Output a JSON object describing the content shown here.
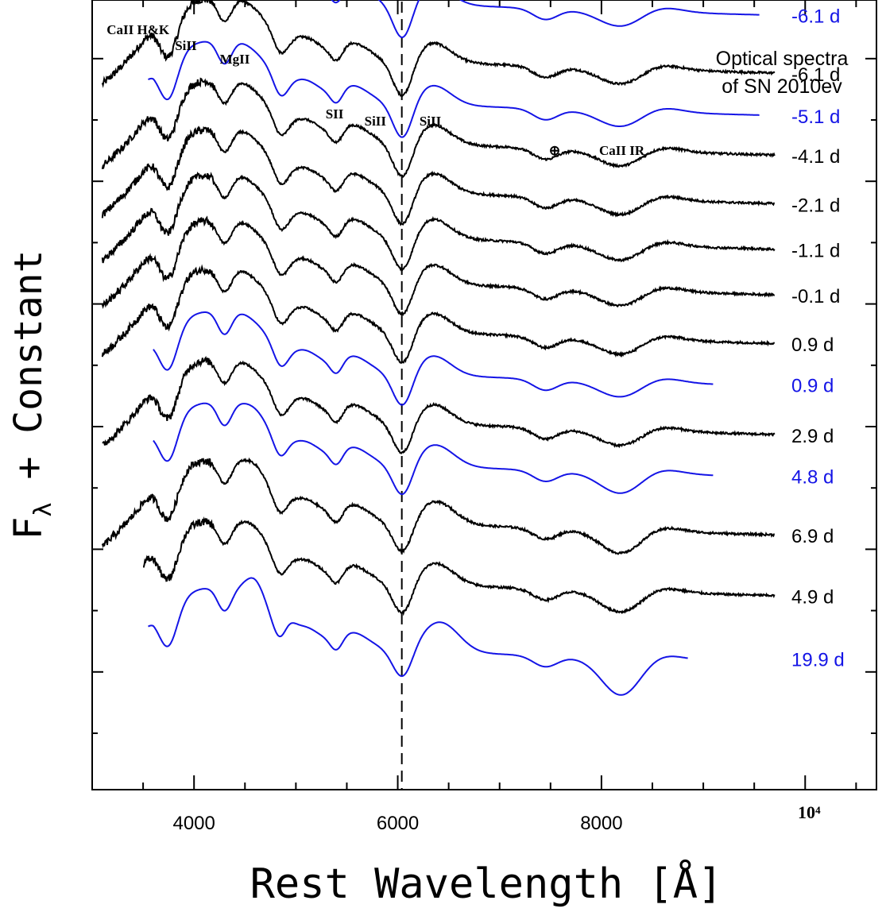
{
  "chart_data": {
    "type": "line",
    "title": [
      "Optical spectra",
      "of SN 2010ev"
    ],
    "xlabel": "Rest Wavelength [Å]",
    "ylabel": "F",
    "ylabel_subscript": "λ",
    "ylabel_suffix": " + Constant",
    "xlim": [
      3000,
      10700
    ],
    "x_ticks": [
      {
        "value": 4000,
        "label": "4000"
      },
      {
        "value": 6000,
        "label": "6000"
      },
      {
        "value": 8000,
        "label": "8000"
      },
      {
        "value": 10000,
        "label": "10⁴"
      }
    ],
    "reference_line": {
      "x": 6040,
      "style": "dashed"
    },
    "feature_labels": [
      {
        "text": "CaII H&K",
        "x": 3450
      },
      {
        "text": "SiII",
        "x": 3920
      },
      {
        "text": "MgII",
        "x": 4400
      },
      {
        "text": "SII",
        "x": 5380
      },
      {
        "text": "SiII",
        "x": 5780
      },
      {
        "text": "SiII",
        "x": 6320
      },
      {
        "text": "⊕",
        "x": 7540
      },
      {
        "text": "CaII IR",
        "x": 8200
      }
    ],
    "series_colors": {
      "black": "#000000",
      "blue": "#1414e6"
    },
    "series": [
      {
        "name": "-6.1 d",
        "color": "blue",
        "x_range": [
          3550,
          9550
        ],
        "offset": 11.5
      },
      {
        "name": "-6.1 d",
        "color": "black",
        "x_range": [
          3100,
          9700
        ],
        "offset": 10.55
      },
      {
        "name": "-5.1 d",
        "color": "blue",
        "x_range": [
          3550,
          9550
        ],
        "offset": 9.85
      },
      {
        "name": "-4.1 d",
        "color": "black",
        "x_range": [
          3100,
          9700
        ],
        "offset": 9.2
      },
      {
        "name": "-2.1 d",
        "color": "black",
        "x_range": [
          3100,
          9700
        ],
        "offset": 8.4
      },
      {
        "name": "-1.1 d",
        "color": "black",
        "x_range": [
          3100,
          9700
        ],
        "offset": 7.65
      },
      {
        "name": "-0.1 d",
        "color": "black",
        "x_range": [
          3100,
          9700
        ],
        "offset": 6.9
      },
      {
        "name": "0.9 d",
        "color": "black",
        "x_range": [
          3100,
          9700
        ],
        "offset": 6.1
      },
      {
        "name": "0.9 d",
        "color": "blue",
        "x_range": [
          3600,
          9100
        ],
        "offset": 5.4
      },
      {
        "name": "2.9 d",
        "color": "black",
        "x_range": [
          3100,
          9700
        ],
        "offset": 4.6
      },
      {
        "name": "4.8 d",
        "color": "blue",
        "x_range": [
          3600,
          9100
        ],
        "offset": 3.9
      },
      {
        "name": "6.9 d",
        "color": "black",
        "x_range": [
          3100,
          9700
        ],
        "offset": 2.95
      },
      {
        "name": "4.9 d",
        "color": "black",
        "x_range": [
          3500,
          9700
        ],
        "offset": 1.95
      },
      {
        "name": "19.9 d",
        "color": "blue",
        "x_range": [
          3550,
          8850
        ],
        "offset": 0.85
      }
    ]
  }
}
